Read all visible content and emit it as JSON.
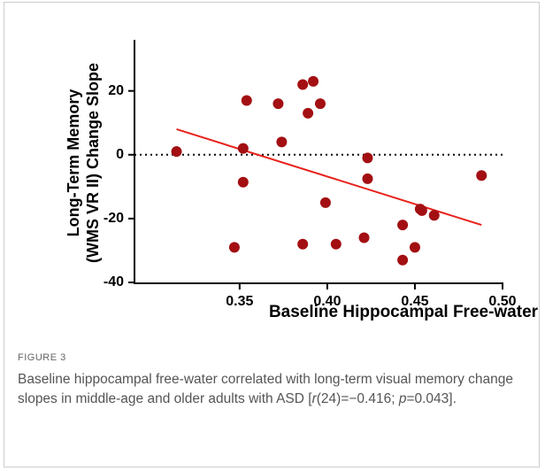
{
  "chart_data": {
    "type": "scatter",
    "xlabel": "Baseline Hippocampal Free-water",
    "ylabel": [
      "Long-Term Memory",
      "(WMS VR II) Change Slope"
    ],
    "x": [
      0.314,
      0.347,
      0.352,
      0.352,
      0.354,
      0.372,
      0.374,
      0.386,
      0.392,
      0.389,
      0.396,
      0.386,
      0.399,
      0.405,
      0.421,
      0.423,
      0.423,
      0.443,
      0.443,
      0.45,
      0.453,
      0.454,
      0.461,
      0.488
    ],
    "values": [
      1,
      -29,
      -8.6,
      2,
      17,
      16,
      4,
      22,
      23,
      13,
      16,
      -28,
      -15,
      -28,
      -26,
      -1,
      -7.5,
      -22,
      -33,
      -29,
      -17,
      -17.5,
      -19,
      -6.5
    ],
    "color": "#a30f12",
    "fit": {
      "x": [
        0.314,
        0.488
      ],
      "y": [
        8,
        -22
      ],
      "color": "#e8221b"
    },
    "hline": 0,
    "xlim": [
      0.29,
      0.5
    ],
    "xticks": [
      {
        "value": 0.35,
        "label": "0.35"
      },
      {
        "value": 0.4,
        "label": "0.40"
      },
      {
        "value": 0.45,
        "label": "0.45"
      },
      {
        "value": 0.5,
        "label": "0.50"
      }
    ],
    "ylim": [
      -40,
      36
    ],
    "yticks": [
      -40,
      -20,
      0,
      20
    ]
  },
  "figure": {
    "label": "FIGURE 3",
    "caption": [
      "Baseline hippocampal free-water correlated with long-term visual memory change slopes in middle-age and older adults with ASD [",
      "r",
      "(24)=−0.416; ",
      "p",
      "=0.043]."
    ]
  }
}
